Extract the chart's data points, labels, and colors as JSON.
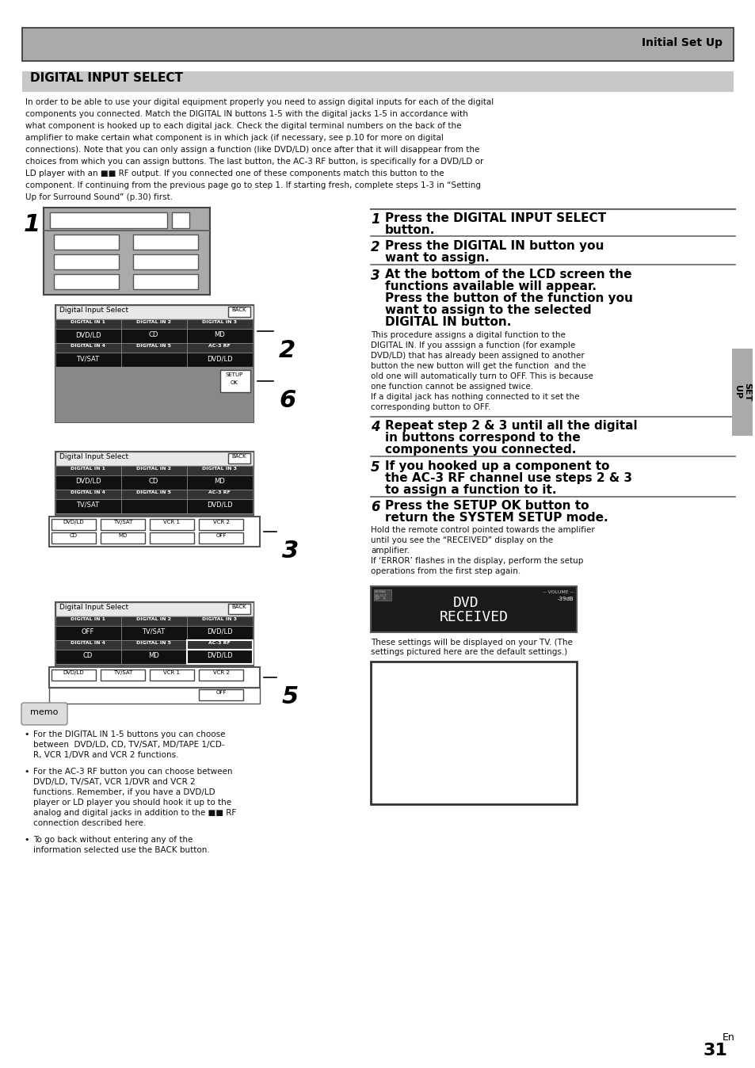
{
  "page_bg": "#ffffff",
  "header_bg": "#aaaaaa",
  "header_text": "Initial Set Up",
  "section_header_bg": "#c8c8c8",
  "section_title": "DIGITAL INPUT SELECT",
  "body_text_lines": [
    "In order to be able to use your digital equipment properly you need to assign digital inputs for each of the digital",
    "components you connected. Match the DIGITAL IN buttons 1-5 with the digital jacks 1-5 in accordance with",
    "what component is hooked up to each digital jack. Check the digital terminal numbers on the back of the",
    "amplifier to make certain what component is in which jack (if necessary, see p.10 for more on digital",
    "connections). Note that you can only assign a function (like DVD/LD) once after that it will disappear from the",
    "choices from which you can assign buttons. The last button, the AC-3 RF button, is specifically for a DVD/LD or",
    "LD player with an ■■ RF output. If you connected one of these components match this button to the",
    "component. If continuing from the previous page go to step 1. If starting fresh, complete steps 1-3 in “Setting",
    "Up for Surround Sound” (p.30) first."
  ],
  "step3_body_lines": [
    "This procedure assigns a digital function to the",
    "DIGITAL IN. If you asssign a function (for example",
    "DVD/LD) that has already been assigned to another",
    "button the new button will get the function  and the",
    "old one will automatically turn to OFF. This is because",
    "one function cannot be assigned twice.",
    "If a digital jack has nothing connected to it set the",
    "corresponding button to OFF."
  ],
  "step6_body_lines": [
    "Hold the remote control pointed towards the amplifier",
    "until you see the “RECEIVED” display on the",
    "amplifier.",
    "If ‘ERROR’ flashes in the display, perform the setup",
    "operations from the first step again."
  ],
  "memo_bullets": [
    "For the DIGITAL IN 1-5 buttons you can choose\nbetween  DVD/LD, CD, TV/SAT, MD/TAPE 1/CD-\nR, VCR 1/DVR and VCR 2 functions.",
    "For the AC-3 RF button you can choose between\nDVD/LD, TV/SAT, VCR 1/DVR and VCR 2\nfunctions. Remember, if you have a DVD/LD\nplayer or LD player you should hook it up to the\nanalog and digital jacks in addition to the ■■ RF\nconnection described here.",
    "To go back without entering any of the\ninformation selected use the BACK button."
  ],
  "lcd_line1": "DVD",
  "lcd_line2": "RECEIVED",
  "lcd_vol": "-- VOLUME --",
  "lcd_vol2": "-39dB",
  "page_number": "31",
  "page_lang": "En",
  "screen1_labels_top": [
    [
      "DIGITAL IN 1",
      "DIGITAL IN 2",
      "DIGITAL IN 3"
    ],
    [
      "DIGITAL IN 4",
      "DIGITAL IN 5",
      "AC-3 RF"
    ]
  ],
  "screen1_labels_bot": [
    [
      "DVD/LD",
      "CD",
      "MD"
    ],
    [
      "TV/SAT",
      "",
      "DVD/LD"
    ]
  ],
  "screen2_labels_top": [
    [
      "DIGITAL IN 1",
      "DIGITAL IN 2",
      "DIGITAL IN 3"
    ],
    [
      "DIGITAL IN 4",
      "DIGITAL IN 5",
      "AC-3 RF"
    ]
  ],
  "screen2_labels_bot": [
    [
      "DVD/LD",
      "CD",
      "MD"
    ],
    [
      "TV/SAT",
      "",
      "DVD/LD"
    ]
  ],
  "screen3_labels_top": [
    [
      "DIGITAL IN 1",
      "DIGITAL IN 2",
      "DIGITAL IN 3"
    ],
    [
      "DIGITAL IN 4",
      "DIGITAL IN 5",
      "AC-3 RF"
    ]
  ],
  "screen3_labels_bot": [
    [
      "OFF",
      "TV/SAT",
      "DVD/LD"
    ],
    [
      "CD",
      "MD",
      "DVD/LD"
    ]
  ],
  "btn_row1": [
    "DVD/LD",
    "TV/SAT",
    "VCR 1",
    "VCR 2"
  ],
  "btn_row2": [
    "CD",
    "MD",
    "",
    "OFF"
  ],
  "btn_row3": [
    "DVD/LD",
    "TV/SAT",
    "VCR 1",
    "VCR 2"
  ],
  "btn_row4": [
    "",
    "",
    "",
    "OFF"
  ]
}
